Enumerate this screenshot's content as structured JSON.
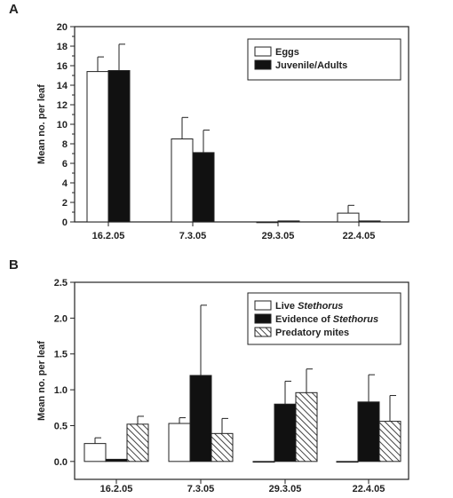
{
  "chart_data": [
    {
      "type": "bar",
      "panel_label": "A",
      "ylabel": "Mean no. per leaf",
      "categories": [
        "16.2.05",
        "7.3.05",
        "29.3.05",
        "22.4.05"
      ],
      "ylim": [
        0,
        20
      ],
      "yticks": [
        "0",
        "2",
        "4",
        "6",
        "8",
        "10",
        "12",
        "14",
        "16",
        "18",
        "20"
      ],
      "legend_position": "top-right",
      "series": [
        {
          "name": "Eggs",
          "fill": "white",
          "values": [
            15.4,
            8.5,
            0.0,
            0.9
          ],
          "errors": [
            1.5,
            2.2,
            0.0,
            0.8
          ]
        },
        {
          "name": "Juvenile/Adults",
          "fill": "black",
          "values": [
            15.5,
            7.1,
            0.1,
            0.1
          ],
          "errors": [
            2.7,
            2.3,
            0.0,
            0.0
          ]
        }
      ]
    },
    {
      "type": "bar",
      "panel_label": "B",
      "ylabel": "Mean no. per leaf",
      "categories": [
        "16.2.05",
        "7.3.05",
        "29.3.05",
        "22.4.05"
      ],
      "ylim": [
        -0.25,
        2.5
      ],
      "yticks": [
        "0.0",
        "0.5",
        "1.0",
        "1.5",
        "2.0",
        "2.5"
      ],
      "legend_position": "top-right",
      "series": [
        {
          "name_parts": [
            "Live ",
            "Stethorus",
            ""
          ],
          "fill": "white",
          "values": [
            0.25,
            0.53,
            0.0,
            0.0
          ],
          "errors": [
            0.08,
            0.08,
            0.0,
            0.0
          ]
        },
        {
          "name_parts": [
            "Evidence of ",
            "Stethorus",
            ""
          ],
          "fill": "black",
          "values": [
            0.03,
            1.2,
            0.8,
            0.83
          ],
          "errors": [
            0.0,
            0.98,
            0.32,
            0.38
          ]
        },
        {
          "name": "Predatory mites",
          "fill": "hatch",
          "values": [
            0.52,
            0.39,
            0.96,
            0.56
          ],
          "errors": [
            0.11,
            0.21,
            0.33,
            0.36
          ]
        }
      ]
    }
  ]
}
